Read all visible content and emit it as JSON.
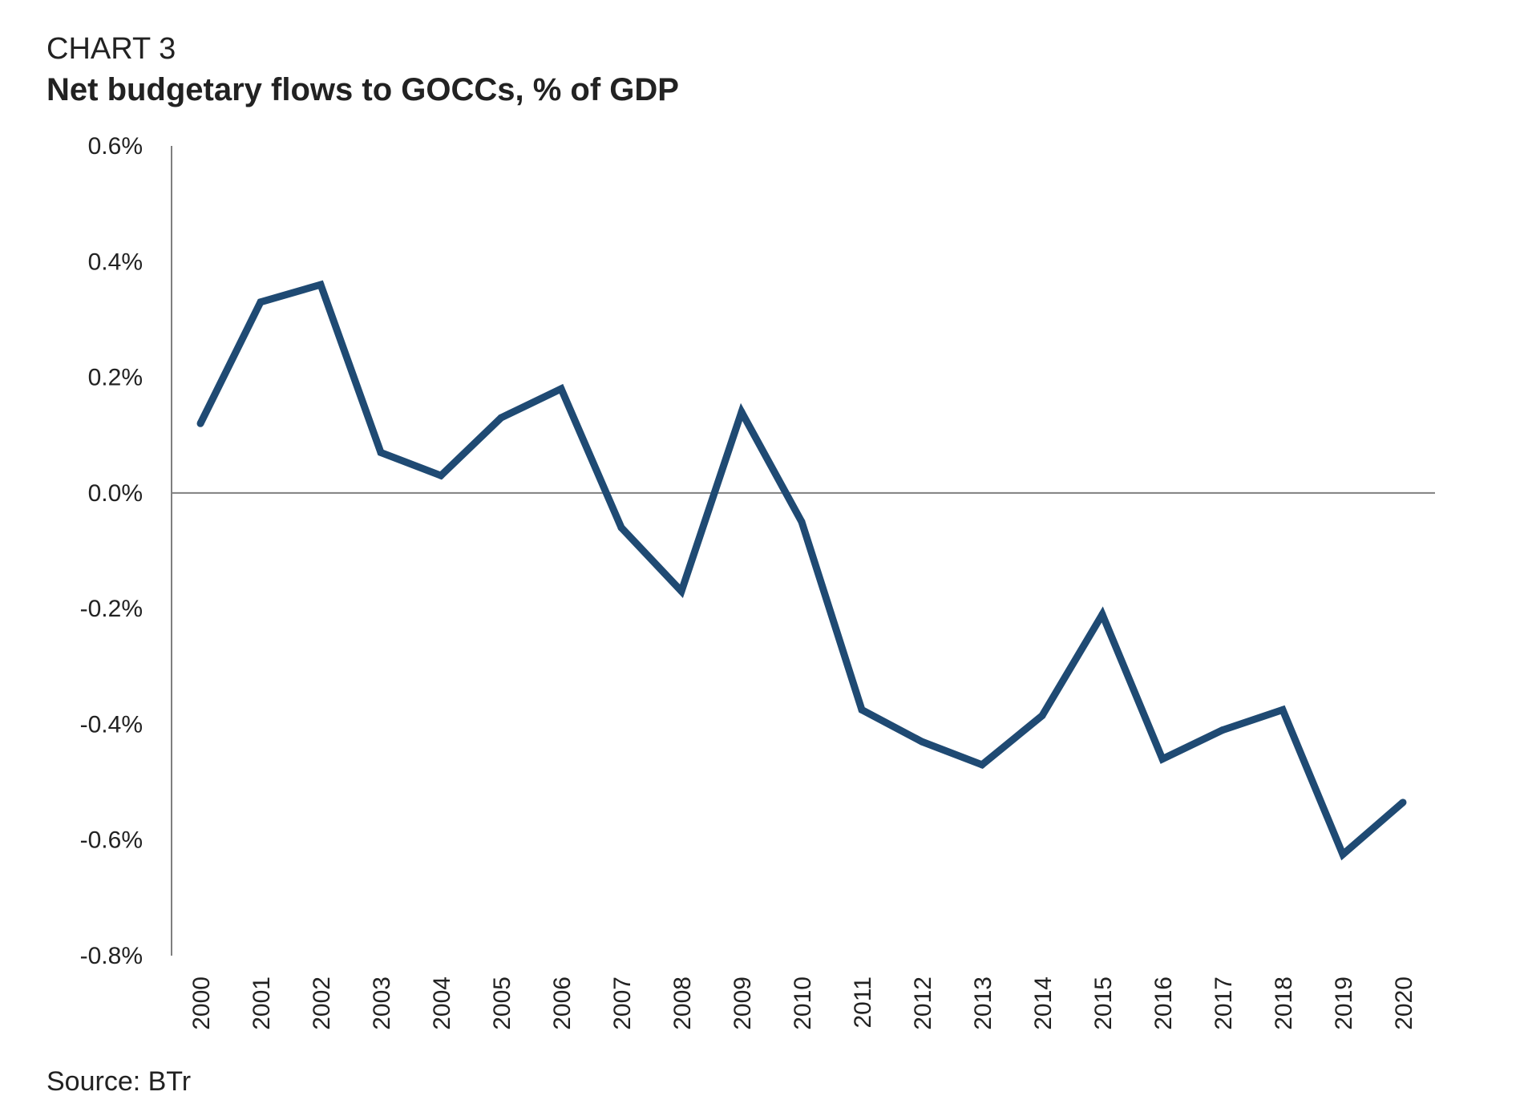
{
  "header": {
    "label": "CHART 3",
    "title": "Net budgetary flows to GOCCs, % of GDP"
  },
  "footer": {
    "source": "Source: BTr"
  },
  "colors": {
    "line": "#1f4a73",
    "axis": "#7f7f7f",
    "text": "#222222"
  },
  "chart_data": {
    "type": "line",
    "title": "Net budgetary flows to GOCCs, % of GDP",
    "xlabel": "",
    "ylabel": "",
    "ylim": [
      -0.8,
      0.6
    ],
    "yticks": [
      0.6,
      0.4,
      0.2,
      0.0,
      -0.2,
      -0.4,
      -0.6,
      -0.8
    ],
    "ytick_labels": [
      "0.6%",
      "0.4%",
      "0.2%",
      "0.0%",
      "-0.2%",
      "-0.4%",
      "-0.6%",
      "-0.8%"
    ],
    "categories": [
      "2000",
      "2001",
      "2002",
      "2003",
      "2004",
      "2005",
      "2006",
      "2007",
      "2008",
      "2009",
      "2010",
      "2011",
      "2012",
      "2013",
      "2014",
      "2015",
      "2016",
      "2017",
      "2018",
      "2019",
      "2020"
    ],
    "series": [
      {
        "values": [
          0.12,
          0.33,
          0.36,
          0.07,
          0.03,
          0.13,
          0.18,
          -0.06,
          -0.17,
          0.14,
          -0.05,
          -0.375,
          -0.43,
          -0.47,
          -0.385,
          -0.21,
          -0.46,
          -0.41,
          -0.375,
          -0.625,
          -0.535
        ]
      }
    ],
    "grid": false,
    "legend": "none"
  }
}
